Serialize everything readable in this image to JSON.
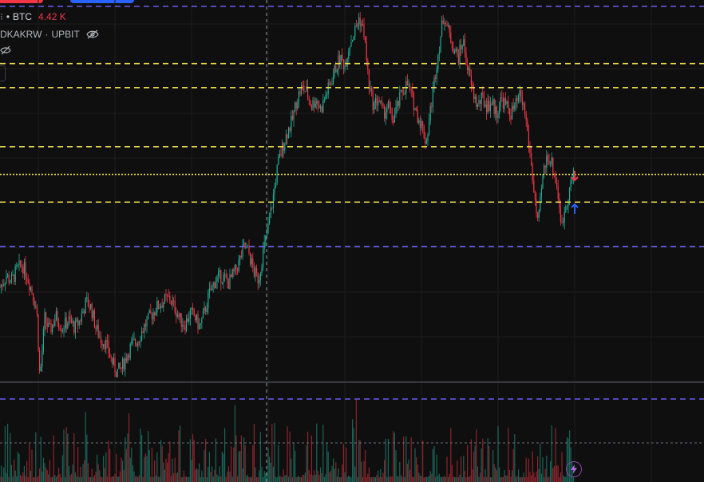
{
  "legend": {
    "symbol": "BTC",
    "volume": "4.42 K",
    "source_partial": "DKAKRW",
    "exchange": "UPBIT"
  },
  "colors": {
    "background": "#0f0f0f",
    "up": "#22ab94",
    "down": "#f23645",
    "level_yellow": "#e8d94a",
    "level_purple": "#6b5cf0",
    "crosshair": "#9598a1",
    "arrow_up": "#2962ff",
    "arrow_down": "#f23645"
  },
  "chart_data": {
    "type": "candlestick",
    "symbol": "BTC",
    "y_scale": "relative price (0 = bottom of visible range, 100 = top)",
    "price_path": [
      [
        0,
        52
      ],
      [
        8,
        58
      ],
      [
        14,
        55
      ],
      [
        22,
        62
      ],
      [
        28,
        64
      ],
      [
        34,
        58
      ],
      [
        40,
        50
      ],
      [
        46,
        40
      ],
      [
        50,
        2
      ],
      [
        56,
        35
      ],
      [
        62,
        28
      ],
      [
        70,
        36
      ],
      [
        78,
        30
      ],
      [
        86,
        34
      ],
      [
        94,
        30
      ],
      [
        100,
        34
      ],
      [
        108,
        44
      ],
      [
        114,
        41
      ],
      [
        120,
        30
      ],
      [
        126,
        24
      ],
      [
        132,
        22
      ],
      [
        140,
        12
      ],
      [
        146,
        6
      ],
      [
        152,
        8
      ],
      [
        158,
        14
      ],
      [
        164,
        20
      ],
      [
        172,
        23
      ],
      [
        180,
        30
      ],
      [
        188,
        36
      ],
      [
        196,
        41
      ],
      [
        204,
        44
      ],
      [
        212,
        46
      ],
      [
        220,
        40
      ],
      [
        226,
        34
      ],
      [
        232,
        32
      ],
      [
        238,
        38
      ],
      [
        244,
        36
      ],
      [
        250,
        30
      ],
      [
        256,
        38
      ],
      [
        262,
        48
      ],
      [
        270,
        56
      ],
      [
        278,
        58
      ],
      [
        286,
        54
      ],
      [
        294,
        60
      ],
      [
        300,
        66
      ],
      [
        306,
        74
      ],
      [
        312,
        70
      ],
      [
        318,
        60
      ],
      [
        324,
        56
      ],
      [
        330,
        72
      ],
      [
        336,
        84
      ],
      [
        342,
        100
      ],
      [
        348,
        118
      ],
      [
        354,
        128
      ],
      [
        360,
        136
      ],
      [
        366,
        142
      ],
      [
        372,
        154
      ],
      [
        378,
        160
      ],
      [
        384,
        158
      ],
      [
        390,
        150
      ],
      [
        396,
        154
      ],
      [
        402,
        148
      ],
      [
        408,
        156
      ],
      [
        414,
        162
      ],
      [
        420,
        170
      ],
      [
        426,
        176
      ],
      [
        432,
        172
      ],
      [
        438,
        184
      ],
      [
        444,
        190
      ],
      [
        450,
        198
      ],
      [
        456,
        190
      ],
      [
        462,
        162
      ],
      [
        468,
        150
      ],
      [
        474,
        154
      ],
      [
        480,
        146
      ],
      [
        486,
        150
      ],
      [
        492,
        142
      ],
      [
        498,
        150
      ],
      [
        504,
        158
      ],
      [
        510,
        162
      ],
      [
        516,
        155
      ],
      [
        522,
        146
      ],
      [
        528,
        140
      ],
      [
        534,
        130
      ],
      [
        540,
        150
      ],
      [
        546,
        170
      ],
      [
        552,
        188
      ],
      [
        556,
        200
      ],
      [
        562,
        190
      ],
      [
        568,
        182
      ],
      [
        574,
        176
      ],
      [
        580,
        186
      ],
      [
        586,
        170
      ],
      [
        592,
        158
      ],
      [
        598,
        150
      ],
      [
        604,
        154
      ],
      [
        610,
        150
      ],
      [
        616,
        152
      ],
      [
        622,
        146
      ],
      [
        628,
        154
      ],
      [
        634,
        150
      ],
      [
        640,
        146
      ],
      [
        646,
        150
      ],
      [
        652,
        156
      ],
      [
        658,
        146
      ],
      [
        664,
        124
      ],
      [
        670,
        100
      ],
      [
        674,
        84
      ],
      [
        680,
        112
      ],
      [
        686,
        124
      ],
      [
        692,
        118
      ],
      [
        698,
        106
      ],
      [
        704,
        84
      ],
      [
        708,
        96
      ],
      [
        712,
        102
      ],
      [
        716,
        110
      ],
      [
        720,
        114
      ]
    ],
    "volume": "per-candle bars, up bars green, down bars red",
    "levels": [
      {
        "style": "dashed",
        "color": "purple",
        "price": 204
      },
      {
        "style": "dashed",
        "color": "yellow",
        "price": 173
      },
      {
        "style": "dashed",
        "color": "yellow",
        "price": 160
      },
      {
        "style": "dashed",
        "color": "yellow",
        "price": 128
      },
      {
        "style": "dotted",
        "color": "yellow",
        "price": 113
      },
      {
        "style": "dashed",
        "color": "yellow",
        "price": 98
      },
      {
        "style": "dashed",
        "color": "purple",
        "price": 74
      },
      {
        "style": "dashed",
        "color": "purple",
        "price": 0
      }
    ],
    "grid": true
  }
}
